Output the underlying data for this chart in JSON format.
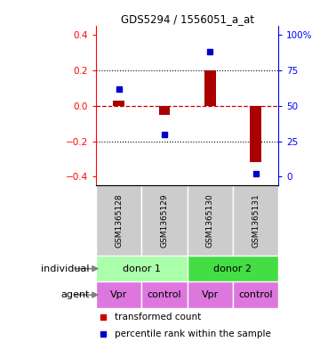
{
  "title": "GDS5294 / 1556051_a_at",
  "samples": [
    "GSM1365128",
    "GSM1365129",
    "GSM1365130",
    "GSM1365131"
  ],
  "bar_values": [
    0.03,
    -0.05,
    0.2,
    -0.32
  ],
  "dot_values_pct": [
    62,
    30,
    88,
    2
  ],
  "ylim": [
    -0.45,
    0.45
  ],
  "yticks_left": [
    -0.4,
    -0.2,
    0.0,
    0.2,
    0.4
  ],
  "bar_color": "#aa0000",
  "dot_color": "#0000cc",
  "hline_color": "#cc0000",
  "individual_label1": "donor 1",
  "individual_label2": "donor 2",
  "individual_color1": "#aaffaa",
  "individual_color2": "#44dd44",
  "agent_color": "#dd77dd",
  "agent_labels": [
    "Vpr",
    "control",
    "Vpr",
    "control"
  ],
  "gsm_bg_color": "#cccccc",
  "legend_bar_color": "#cc0000",
  "legend_dot_color": "#0000cc"
}
